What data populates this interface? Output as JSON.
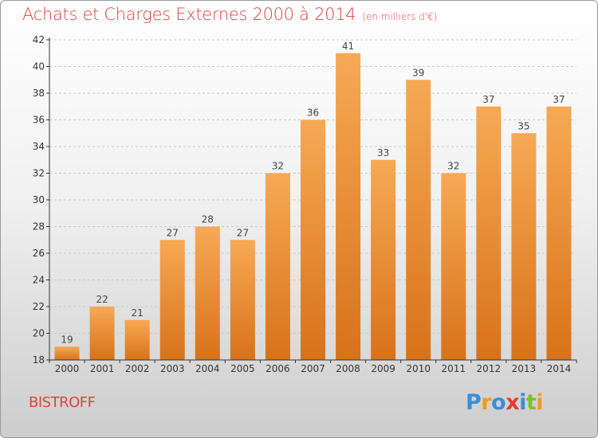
{
  "header": {
    "title": "Achats et Charges Externes 2000 à 2014",
    "subtitle": "(en milliers d'€)"
  },
  "footer": {
    "city": "BISTROFF",
    "logo": {
      "text": "Proxiti",
      "letters": [
        {
          "char": "P",
          "color": "#3a8fd6"
        },
        {
          "char": "r",
          "color": "#f39a1c"
        },
        {
          "char": "o",
          "color": "#3a8fd6"
        },
        {
          "char": "x",
          "color": "#e43b2e"
        },
        {
          "char": "i",
          "color": "#3a8fd6"
        },
        {
          "char": "t",
          "color": "#7bbf2a"
        },
        {
          "char": "i",
          "color": "#f39a1c"
        }
      ]
    }
  },
  "colors": {
    "title": "#e0443a",
    "bar_light": "#f7a955",
    "bar_dark": "#d87219",
    "grid": "#c8c8c8",
    "axis": "#333333"
  },
  "chart_data": {
    "type": "bar",
    "categories": [
      "2000",
      "2001",
      "2002",
      "2003",
      "2004",
      "2005",
      "2006",
      "2007",
      "2008",
      "2009",
      "2010",
      "2011",
      "2012",
      "2013",
      "2014"
    ],
    "values": [
      19,
      22,
      21,
      27,
      28,
      27,
      32,
      36,
      41,
      33,
      39,
      32,
      37,
      35,
      37
    ],
    "title": "Achats et Charges Externes 2000 à 2014",
    "subtitle": "(en milliers d'€)",
    "xlabel": "",
    "ylabel": "",
    "ylim": [
      18,
      42
    ],
    "yticks": [
      18,
      20,
      22,
      24,
      26,
      28,
      30,
      32,
      34,
      36,
      38,
      40,
      42
    ],
    "grid": "horizontal dashed",
    "legend": "none"
  }
}
